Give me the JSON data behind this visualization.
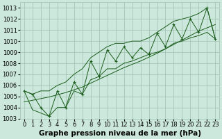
{
  "x": [
    0,
    1,
    2,
    3,
    4,
    5,
    6,
    7,
    8,
    9,
    10,
    11,
    12,
    13,
    14,
    15,
    16,
    17,
    18,
    19,
    20,
    21,
    22,
    23
  ],
  "y_main": [
    1005.5,
    1005.2,
    1004.0,
    1003.2,
    1005.5,
    1004.0,
    1006.3,
    1005.2,
    1008.2,
    1006.8,
    1009.2,
    1008.2,
    1009.5,
    1008.5,
    1009.4,
    1008.8,
    1010.7,
    1009.5,
    1011.5,
    1010.2,
    1012.0,
    1010.8,
    1013.0,
    1010.2
  ],
  "y_upper": [
    1005.5,
    1005.2,
    1005.5,
    1005.5,
    1006.0,
    1006.3,
    1007.0,
    1007.5,
    1008.5,
    1009.0,
    1009.5,
    1009.8,
    1009.8,
    1010.0,
    1010.0,
    1010.3,
    1010.8,
    1011.3,
    1011.8,
    1012.0,
    1012.2,
    1012.5,
    1013.0,
    1010.2
  ],
  "y_lower": [
    1005.5,
    1003.8,
    1003.5,
    1003.2,
    1004.0,
    1004.0,
    1005.5,
    1005.2,
    1006.5,
    1006.8,
    1007.5,
    1007.5,
    1008.0,
    1008.2,
    1008.5,
    1008.8,
    1009.0,
    1009.3,
    1009.8,
    1010.0,
    1010.3,
    1010.5,
    1010.8,
    1010.2
  ],
  "y_trend": [
    1004.5,
    1004.65,
    1004.8,
    1004.95,
    1005.15,
    1005.35,
    1005.6,
    1005.85,
    1006.2,
    1006.55,
    1006.9,
    1007.25,
    1007.6,
    1007.9,
    1008.2,
    1008.55,
    1008.9,
    1009.3,
    1009.7,
    1010.1,
    1010.5,
    1010.9,
    1011.2,
    1011.5
  ],
  "bg_color": "#cce8dc",
  "grid_color": "#9dbfb0",
  "line_color": "#1a5c1a",
  "ylim": [
    1003.0,
    1013.5
  ],
  "yticks": [
    1003,
    1004,
    1005,
    1006,
    1007,
    1008,
    1009,
    1010,
    1011,
    1012,
    1013
  ],
  "xlabel": "Graphe pression niveau de la mer (hPa)",
  "xlabel_fontsize": 7.5,
  "tick_fontsize": 6.0
}
